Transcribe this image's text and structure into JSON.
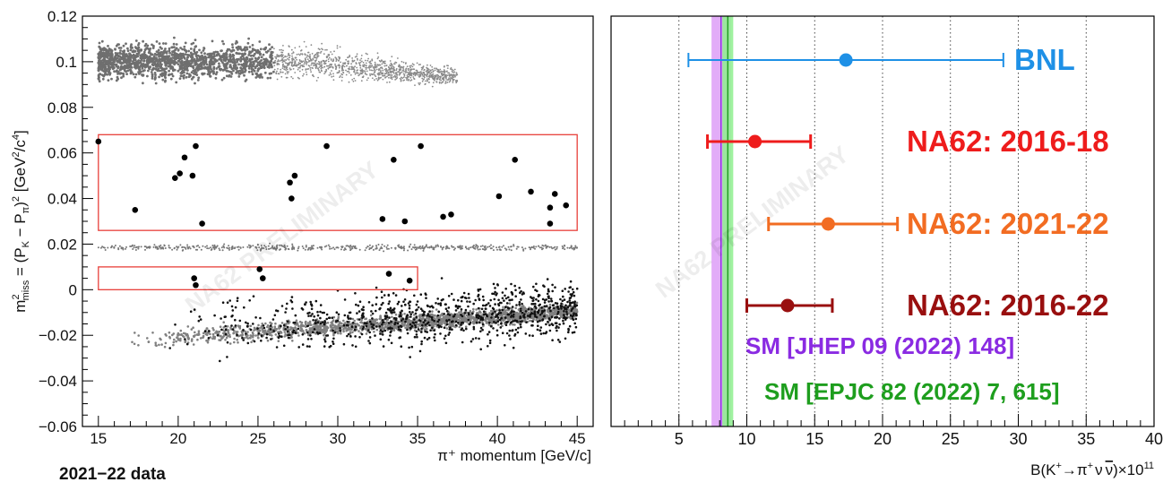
{
  "caption": "2021−22 data",
  "watermark": "NA62 PRELIMINARY",
  "chart_data": [
    {
      "type": "scatter",
      "xlabel": "π⁺ momentum [GeV/c]",
      "ylabel": "m²miss = (PK − Pπ)² [GeV²/c⁴]",
      "ylabel_parts": {
        "m": "m",
        "sup2": "2",
        "miss": "miss",
        "eq": " = (P",
        "K": "K",
        "minus": " − P",
        "pi": "π",
        "close": ")",
        "sq": "2",
        "unit": " [GeV",
        "u2": "2",
        "slash": "/c",
        "u4": "4",
        "end": "]"
      },
      "xlim": [
        14,
        46
      ],
      "ylim": [
        -0.06,
        0.12
      ],
      "xticks": [
        "15",
        "20",
        "25",
        "30",
        "35",
        "40",
        "45"
      ],
      "xtick_values": [
        15,
        20,
        25,
        30,
        35,
        40,
        45
      ],
      "yticks": [
        "−0.06",
        "−0.04",
        "−0.02",
        "0",
        "0.02",
        "0.04",
        "0.06",
        "0.08",
        "0.1",
        "0.12"
      ],
      "ytick_values": [
        -0.06,
        -0.04,
        -0.02,
        0,
        0.02,
        0.04,
        0.06,
        0.08,
        0.1,
        0.12
      ],
      "signal_regions": [
        {
          "x": [
            15,
            45
          ],
          "y": [
            0.026,
            0.068
          ]
        },
        {
          "x": [
            15,
            35
          ],
          "y": [
            0.0,
            0.01
          ]
        }
      ],
      "region_color": "#e8403a",
      "candidates": [
        [
          15.0,
          0.065
        ],
        [
          17.3,
          0.035
        ],
        [
          19.8,
          0.049
        ],
        [
          20.1,
          0.051
        ],
        [
          20.4,
          0.058
        ],
        [
          20.9,
          0.05
        ],
        [
          21.1,
          0.063
        ],
        [
          21.5,
          0.029
        ],
        [
          21.0,
          0.005
        ],
        [
          21.1,
          0.002
        ],
        [
          25.1,
          0.009
        ],
        [
          25.3,
          0.005
        ],
        [
          27.0,
          0.047
        ],
        [
          27.1,
          0.04
        ],
        [
          27.3,
          0.05
        ],
        [
          29.3,
          0.063
        ],
        [
          32.8,
          0.031
        ],
        [
          33.5,
          0.057
        ],
        [
          34.2,
          0.03
        ],
        [
          35.2,
          0.063
        ],
        [
          33.2,
          0.007
        ],
        [
          34.5,
          0.004
        ],
        [
          36.6,
          0.032
        ],
        [
          37.1,
          0.033
        ],
        [
          40.1,
          0.041
        ],
        [
          41.1,
          0.057
        ],
        [
          42.1,
          0.043
        ],
        [
          43.3,
          0.036
        ],
        [
          43.6,
          0.042
        ],
        [
          43.3,
          0.029
        ],
        [
          44.3,
          0.037
        ]
      ],
      "bands": [
        {
          "name_desc": "K→ππ⁰ band",
          "y": 0.018
        },
        {
          "name_desc": "K→μν band",
          "trend": [
            [
              15,
              -0.022
            ],
            [
              45,
              -0.009
            ]
          ]
        },
        {
          "name_desc": "K→πππ band",
          "x": [
            15,
            37
          ],
          "y_center": 0.1
        }
      ]
    },
    {
      "type": "errorbar",
      "xlabel": "B(K⁺→π⁺νν̄) × 10¹¹",
      "xlabel_parts": {
        "pre": "B(K",
        "sup1": "+",
        "arrow": "→π",
        "sup2": "+",
        "nu1": "ν",
        "nubar": "ν",
        "post": ")×10",
        "exp": "11"
      },
      "xlim": [
        0,
        40
      ],
      "xticks": [
        "5",
        "10",
        "15",
        "20",
        "25",
        "30",
        "35",
        "40"
      ],
      "xtick_values": [
        5,
        10,
        15,
        20,
        25,
        30,
        35,
        40
      ],
      "grid": "vertical dotted",
      "measurements": [
        {
          "label": "BNL",
          "value": 17.3,
          "lo": 5.7,
          "hi": 28.9,
          "color": "#1e90e6"
        },
        {
          "label": "NA62: 2016-18",
          "value": 10.6,
          "lo": 7.1,
          "hi": 14.7,
          "color": "#ee1c1c"
        },
        {
          "label": "NA62: 2021-22",
          "value": 16.0,
          "lo": 11.6,
          "hi": 21.1,
          "color": "#f26c22"
        },
        {
          "label": "NA62: 2016-22",
          "value": 13.0,
          "lo": 10.0,
          "hi": 16.3,
          "color": "#990f0f"
        }
      ],
      "predictions": [
        {
          "label": "SM [JHEP 09 (2022) 148]",
          "value": 8.1,
          "lo": 7.4,
          "hi": 8.8,
          "color": "#8a2be2",
          "band_color": "#dd9ef7"
        },
        {
          "label": "SM [EPJC 82 (2022) 7, 615]",
          "value": 8.6,
          "lo": 8.2,
          "hi": 9.0,
          "color": "#1e9e1e",
          "band_color": "#8ef08e"
        }
      ]
    }
  ]
}
